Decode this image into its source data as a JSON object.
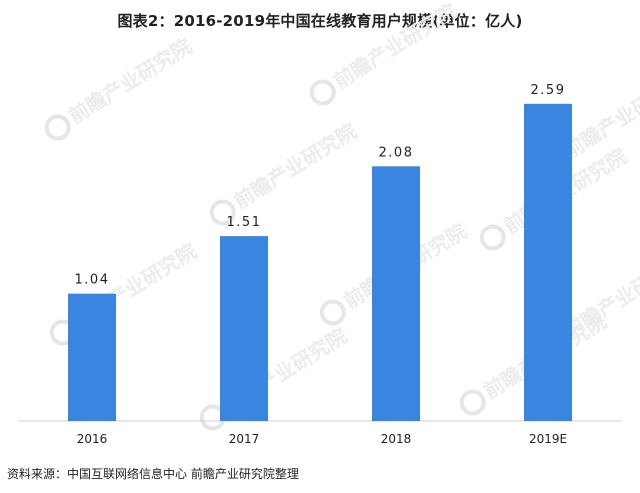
{
  "chart_data": {
    "type": "bar",
    "title": "图表2：2016-2019年中国在线教育用户规模(单位：亿人)",
    "categories": [
      "2016",
      "2017",
      "2018",
      "2019E"
    ],
    "values": [
      1.04,
      1.51,
      2.08,
      2.59
    ],
    "value_labels": [
      "1.04",
      "1.51",
      "2.08",
      "2.59"
    ],
    "xlabel": "",
    "ylabel": "",
    "ylim": [
      0,
      2.85
    ],
    "grid": false,
    "legend": "none",
    "bar_color": "#3A85E0"
  },
  "source": "资料来源：中国互联网络信息中心 前瞻产业研究院整理",
  "watermark": {
    "text": "前瞻产业研究院"
  }
}
